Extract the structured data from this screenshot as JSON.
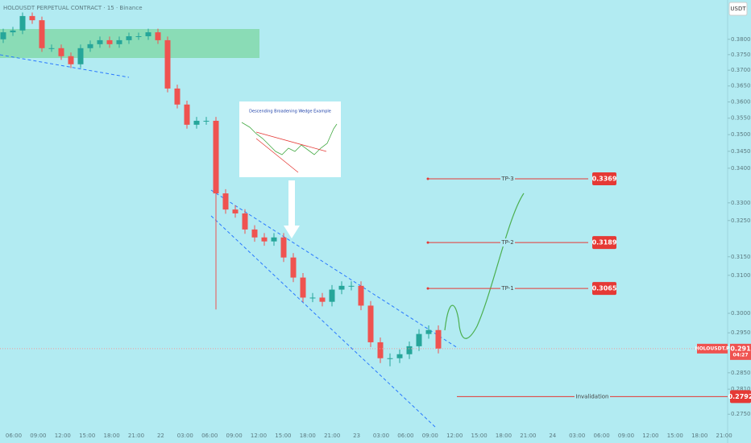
{
  "chart_data": {
    "type": "candlestick",
    "title": "HOLOUSDT PERPETUAL CONTRACT · 15 · Binance",
    "currency_button": "USDT",
    "inset_title": "Descending Broadening Wedge Example",
    "log_scale": true,
    "ylim": [
      0.2739,
      0.3931
    ],
    "yticks": [
      {
        "value": 0.38,
        "label": "0.3800"
      },
      {
        "value": 0.375,
        "label": "0.3750"
      },
      {
        "value": 0.37,
        "label": "0.3700"
      },
      {
        "value": 0.365,
        "label": "0.3650"
      },
      {
        "value": 0.36,
        "label": "0.3600"
      },
      {
        "value": 0.355,
        "label": "0.3550"
      },
      {
        "value": 0.35,
        "label": "0.3500"
      },
      {
        "value": 0.345,
        "label": "0.3450"
      },
      {
        "value": 0.34,
        "label": "0.3400"
      },
      {
        "value": 0.33,
        "label": "0.3300"
      },
      {
        "value": 0.325,
        "label": "0.3250"
      },
      {
        "value": 0.315,
        "label": "0.3150"
      },
      {
        "value": 0.31,
        "label": "0.3100"
      },
      {
        "value": 0.3,
        "label": "0.3000"
      },
      {
        "value": 0.295,
        "label": "0.2950"
      },
      {
        "value": 0.285,
        "label": "0.2850"
      },
      {
        "value": 0.281,
        "label": "0.2810"
      },
      {
        "value": 0.275,
        "label": "0.2750"
      }
    ],
    "xticks": [
      "06:00",
      "09:00",
      "12:00",
      "15:00",
      "18:00",
      "21:00",
      "22",
      "03:00",
      "06:00",
      "09:00",
      "12:00",
      "15:00",
      "18:00",
      "21:00",
      "23",
      "03:00",
      "06:00",
      "09:00",
      "12:00",
      "15:00",
      "18:00",
      "21:00",
      "24",
      "03:00",
      "06:00",
      "09:00",
      "12:00",
      "15:00",
      "18:00",
      "21:00"
    ],
    "open": [
      0.38,
      0.3823,
      0.3829,
      0.3877,
      0.3863,
      0.3771,
      0.3771,
      0.3745,
      0.3719,
      0.3771,
      0.3784,
      0.3797,
      0.3784,
      0.3797,
      0.381,
      0.381,
      0.3823,
      0.3797,
      0.3642,
      0.3592,
      0.353,
      0.3542,
      0.3542,
      0.3327,
      0.3281,
      0.327,
      0.3225,
      0.3203,
      0.3192,
      0.3203,
      0.3148,
      0.3094,
      0.3041,
      0.3041,
      0.303,
      0.3062,
      0.3072,
      0.3072,
      0.302,
      0.2926,
      0.2886,
      0.2886,
      0.2896,
      0.2916,
      0.2947,
      0.2957
    ],
    "high": [
      0.3835,
      0.3841,
      0.3889,
      0.3889,
      0.3875,
      0.3783,
      0.3783,
      0.3757,
      0.3783,
      0.3796,
      0.3809,
      0.3809,
      0.3809,
      0.3822,
      0.3822,
      0.3835,
      0.3835,
      0.3809,
      0.3654,
      0.3604,
      0.3554,
      0.3554,
      0.3554,
      0.3339,
      0.3293,
      0.3282,
      0.3237,
      0.3215,
      0.3215,
      0.3215,
      0.316,
      0.3106,
      0.3053,
      0.3053,
      0.3074,
      0.3084,
      0.3084,
      0.3084,
      0.3032,
      0.2938,
      0.2898,
      0.2908,
      0.2928,
      0.2959,
      0.2969,
      0.2969
    ],
    "low": [
      0.3788,
      0.3811,
      0.3817,
      0.3851,
      0.3759,
      0.3759,
      0.3733,
      0.3707,
      0.3707,
      0.3759,
      0.3772,
      0.3772,
      0.3772,
      0.3785,
      0.3798,
      0.3798,
      0.3785,
      0.363,
      0.358,
      0.3518,
      0.3518,
      0.353,
      0.301,
      0.3269,
      0.3258,
      0.3213,
      0.3191,
      0.318,
      0.318,
      0.3136,
      0.3082,
      0.3029,
      0.3029,
      0.3018,
      0.3018,
      0.305,
      0.306,
      0.3008,
      0.2914,
      0.2874,
      0.2866,
      0.2874,
      0.2884,
      0.2904,
      0.2935,
      0.2898
    ],
    "close": [
      0.3823,
      0.3829,
      0.3877,
      0.3863,
      0.3771,
      0.3771,
      0.3745,
      0.3719,
      0.3771,
      0.3784,
      0.3797,
      0.3784,
      0.3797,
      0.381,
      0.381,
      0.3823,
      0.3797,
      0.3642,
      0.3592,
      0.353,
      0.3542,
      0.3542,
      0.3327,
      0.3281,
      0.327,
      0.3225,
      0.3203,
      0.3192,
      0.3203,
      0.3148,
      0.3094,
      0.3041,
      0.3041,
      0.303,
      0.3062,
      0.3072,
      0.3072,
      0.302,
      0.2926,
      0.2886,
      0.2886,
      0.2896,
      0.2916,
      0.2947,
      0.2957,
      0.291
    ],
    "up_color": "#26a69a",
    "down_color": "#ef5350",
    "levels": [
      {
        "name": "TP-3",
        "value": 0.3369
      },
      {
        "name": "TP-2",
        "value": 0.3189
      },
      {
        "name": "TP-1",
        "value": 0.3065
      },
      {
        "name": "Invalidation",
        "value": 0.2792
      }
    ],
    "price_tag": {
      "symbol": "HOLOUSDT.P",
      "value": 0.291,
      "countdown": "04:27"
    }
  }
}
